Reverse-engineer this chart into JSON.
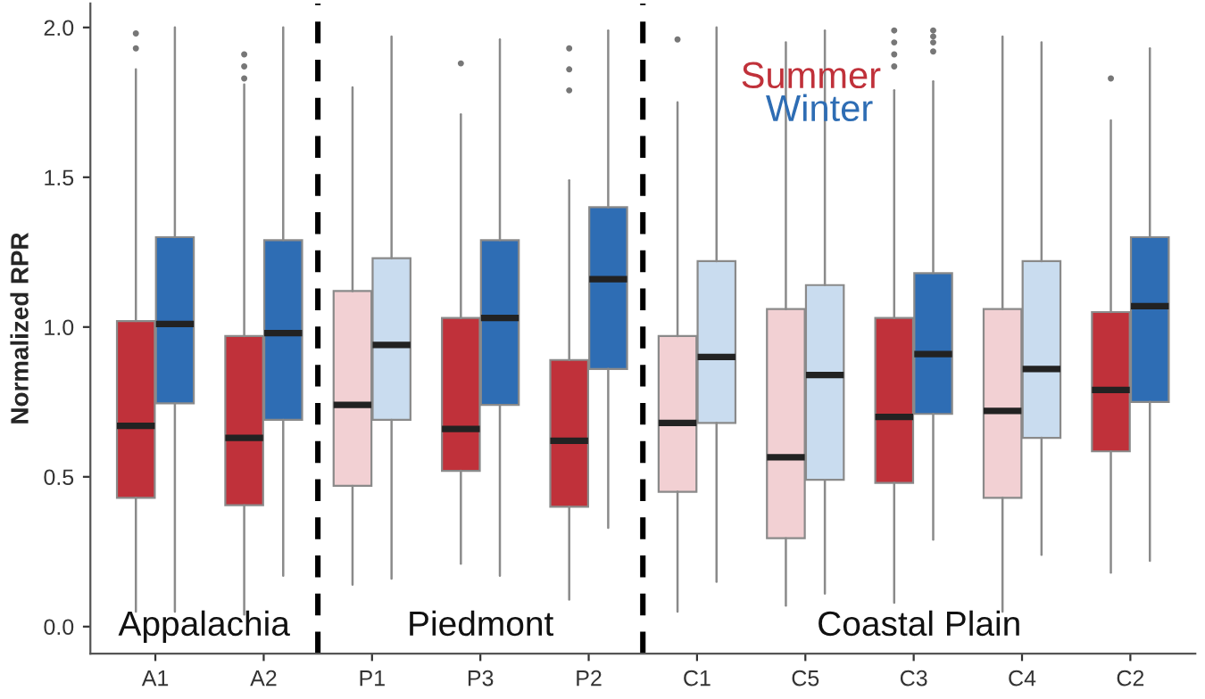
{
  "chart_data": {
    "type": "box",
    "ylabel": "Normalized RPR",
    "categories": [
      "A1",
      "A2",
      "P1",
      "P3",
      "P2",
      "C1",
      "C5",
      "C3",
      "C4",
      "C2"
    ],
    "ylim": [
      -0.09,
      2.08
    ],
    "yticks": [
      {
        "value": 0,
        "label": "0.0"
      },
      {
        "value": 0.5,
        "label": "0.5"
      },
      {
        "value": 1,
        "label": "1.0"
      },
      {
        "value": 1.5,
        "label": "1.5"
      },
      {
        "value": 2,
        "label": "2.0"
      }
    ],
    "grid": false,
    "series": [
      {
        "name": "Summer",
        "color": "#c0313a",
        "colors": [
          "#c0313a",
          "#c0313a",
          "#f2d0d3",
          "#c0313a",
          "#c0313a",
          "#f2d0d3",
          "#f2d0d3",
          "#c0313a",
          "#f2d0d3",
          "#c0313a"
        ],
        "boxes": [
          {
            "low": 0.05,
            "q1": 0.43,
            "median": 0.67,
            "q3": 1.02,
            "high": 1.86,
            "outliers": [
              1.93,
              1.98
            ]
          },
          {
            "low": 0.04,
            "q1": 0.405,
            "median": 0.63,
            "q3": 0.97,
            "high": 1.81,
            "outliers": [
              1.83,
              1.87,
              1.91
            ]
          },
          {
            "low": 0.14,
            "q1": 0.47,
            "median": 0.74,
            "q3": 1.12,
            "high": 1.8
          },
          {
            "low": 0.21,
            "q1": 0.52,
            "median": 0.66,
            "q3": 1.03,
            "high": 1.71,
            "outliers": [
              1.88
            ]
          },
          {
            "low": 0.09,
            "q1": 0.4,
            "median": 0.62,
            "q3": 0.89,
            "high": 1.49,
            "outliers": [
              1.79,
              1.86,
              1.93
            ]
          },
          {
            "low": 0.05,
            "q1": 0.45,
            "median": 0.68,
            "q3": 0.97,
            "high": 1.75,
            "outliers": [
              1.96
            ]
          },
          {
            "low": 0.07,
            "q1": 0.295,
            "median": 0.565,
            "q3": 1.06,
            "high": 1.95
          },
          {
            "low": 0.08,
            "q1": 0.48,
            "median": 0.7,
            "q3": 1.03,
            "high": 1.79,
            "outliers": [
              1.87,
              1.91,
              1.95,
              1.99
            ]
          },
          {
            "low": 0.05,
            "q1": 0.43,
            "median": 0.72,
            "q3": 1.06,
            "high": 1.97
          },
          {
            "low": 0.18,
            "q1": 0.585,
            "median": 0.79,
            "q3": 1.05,
            "high": 1.69,
            "outliers": [
              1.83
            ]
          }
        ]
      },
      {
        "name": "Winter",
        "color": "#2e6db4",
        "colors": [
          "#2e6db4",
          "#2e6db4",
          "#c9dcef",
          "#2e6db4",
          "#2e6db4",
          "#c9dcef",
          "#c9dcef",
          "#2e6db4",
          "#c9dcef",
          "#2e6db4"
        ],
        "boxes": [
          {
            "low": 0.05,
            "q1": 0.745,
            "median": 1.01,
            "q3": 1.3,
            "high": 2.0
          },
          {
            "low": 0.17,
            "q1": 0.69,
            "median": 0.98,
            "q3": 1.29,
            "high": 2.0
          },
          {
            "low": 0.16,
            "q1": 0.69,
            "median": 0.94,
            "q3": 1.23,
            "high": 1.97
          },
          {
            "low": 0.17,
            "q1": 0.74,
            "median": 1.03,
            "q3": 1.29,
            "high": 1.96
          },
          {
            "low": 0.33,
            "q1": 0.86,
            "median": 1.16,
            "q3": 1.4,
            "high": 1.99
          },
          {
            "low": 0.15,
            "q1": 0.68,
            "median": 0.9,
            "q3": 1.22,
            "high": 2.0
          },
          {
            "low": 0.11,
            "q1": 0.49,
            "median": 0.84,
            "q3": 1.14,
            "high": 1.99
          },
          {
            "low": 0.29,
            "q1": 0.71,
            "median": 0.91,
            "q3": 1.18,
            "high": 1.82,
            "outliers": [
              1.92,
              1.95,
              1.97,
              1.99
            ]
          },
          {
            "low": 0.24,
            "q1": 0.63,
            "median": 0.86,
            "q3": 1.22,
            "high": 1.95
          },
          {
            "low": 0.22,
            "q1": 0.75,
            "median": 1.07,
            "q3": 1.3,
            "high": 1.93
          }
        ]
      }
    ],
    "annotations": [
      "Appalachia",
      "Piedmont",
      "Coastal Plain"
    ]
  }
}
